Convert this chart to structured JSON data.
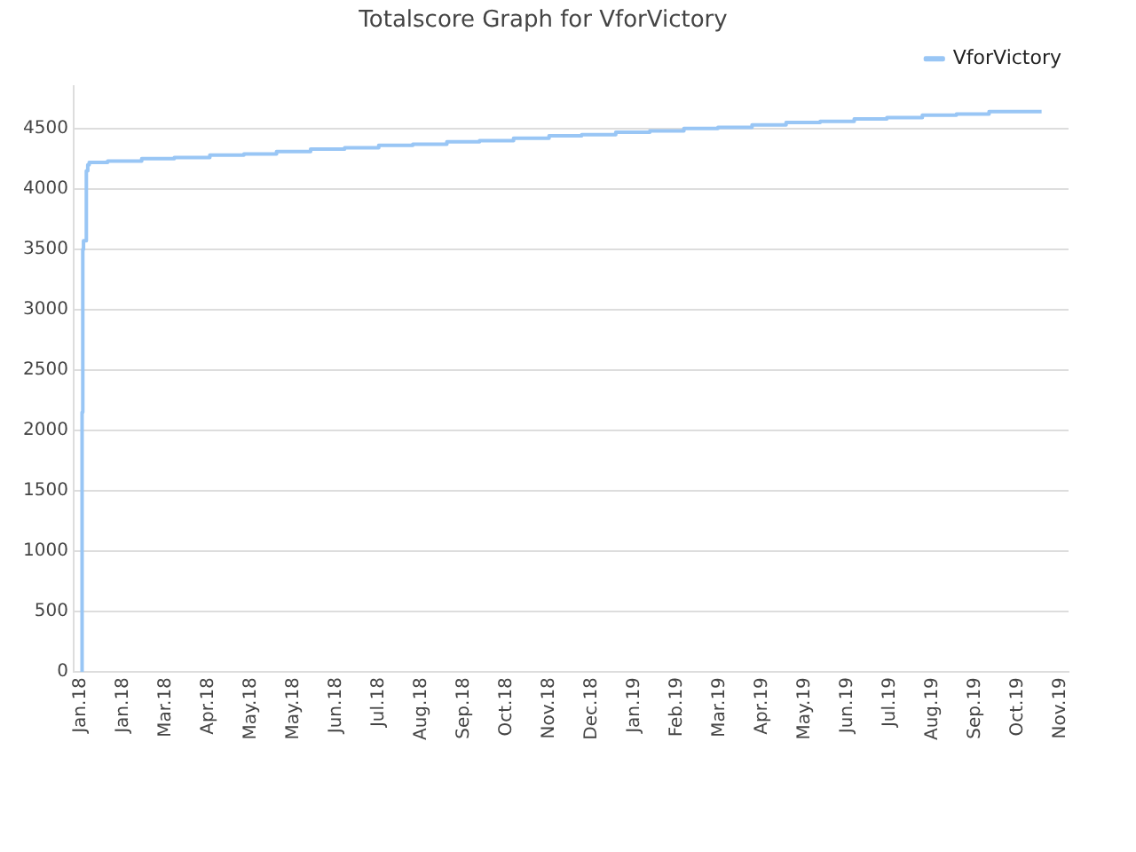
{
  "chart_data": {
    "type": "step",
    "title": "Totalscore Graph for VforVictory",
    "x": [
      "2018-01-02",
      "2018-01-02T12:00",
      "2018-01-03",
      "2018-01-05",
      "2018-01-06",
      "2018-01-07",
      "2018-01-20",
      "2018-02-13",
      "2018-03-08",
      "2018-04-02",
      "2018-04-26",
      "2018-05-19",
      "2018-06-12",
      "2018-07-06",
      "2018-07-30",
      "2018-08-23",
      "2018-09-16",
      "2018-10-09",
      "2018-11-02",
      "2018-11-27",
      "2018-12-20",
      "2019-01-13",
      "2019-02-06",
      "2019-03-02",
      "2019-03-26",
      "2019-04-19",
      "2019-05-13",
      "2019-06-06",
      "2019-06-30",
      "2019-07-23",
      "2019-08-17",
      "2019-09-10",
      "2019-10-03",
      "2019-10-27",
      "2019-11-09"
    ],
    "series": [
      {
        "name": "VforVictory",
        "color": "#99c6f5",
        "values": [
          0,
          2150,
          3500,
          3570,
          4150,
          4200,
          4220,
          4230,
          4250,
          4260,
          4280,
          4290,
          4310,
          4330,
          4340,
          4360,
          4370,
          4390,
          4400,
          4420,
          4440,
          4450,
          4470,
          4480,
          4500,
          4510,
          4530,
          4550,
          4560,
          4580,
          4590,
          4610,
          4620,
          4640,
          4640
        ]
      }
    ],
    "xlim": [
      "2017-12-27",
      "2019-11-28"
    ],
    "xticks": [
      {
        "value": "2018-01-01",
        "label": "Jan.18"
      },
      {
        "value": "2018-01-31",
        "label": "Jan.18"
      },
      {
        "value": "2018-03-02",
        "label": "Mar.18"
      },
      {
        "value": "2018-04-01",
        "label": "Apr.18"
      },
      {
        "value": "2018-05-01",
        "label": "May.18"
      },
      {
        "value": "2018-05-31",
        "label": "May.18"
      },
      {
        "value": "2018-06-30",
        "label": "Jun.18"
      },
      {
        "value": "2018-07-30",
        "label": "Jul.18"
      },
      {
        "value": "2018-08-29",
        "label": "Aug.18"
      },
      {
        "value": "2018-09-28",
        "label": "Sep.18"
      },
      {
        "value": "2018-10-28",
        "label": "Oct.18"
      },
      {
        "value": "2018-11-27",
        "label": "Nov.18"
      },
      {
        "value": "2018-12-27",
        "label": "Dec.18"
      },
      {
        "value": "2019-01-26",
        "label": "Jan.19"
      },
      {
        "value": "2019-02-25",
        "label": "Feb.19"
      },
      {
        "value": "2019-03-27",
        "label": "Mar.19"
      },
      {
        "value": "2019-04-26",
        "label": "Apr.19"
      },
      {
        "value": "2019-05-26",
        "label": "May.19"
      },
      {
        "value": "2019-06-25",
        "label": "Jun.19"
      },
      {
        "value": "2019-07-25",
        "label": "Jul.19"
      },
      {
        "value": "2019-08-24",
        "label": "Aug.19"
      },
      {
        "value": "2019-09-23",
        "label": "Sep.19"
      },
      {
        "value": "2019-10-23",
        "label": "Oct.19"
      },
      {
        "value": "2019-11-22",
        "label": "Nov.19"
      }
    ],
    "ylim": [
      0,
      4850
    ],
    "yticks": [
      0,
      500,
      1000,
      1500,
      2000,
      2500,
      3000,
      3500,
      4000,
      4500
    ],
    "grid": "y",
    "legend": "top right",
    "marker": "none",
    "line_style": "solid"
  }
}
